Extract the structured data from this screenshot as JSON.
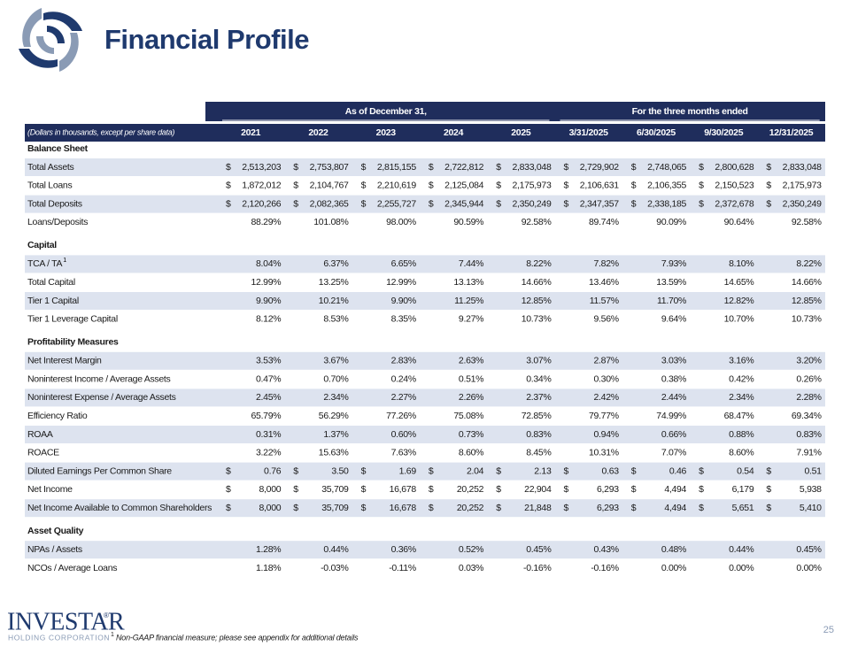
{
  "header": {
    "title": "Financial Profile"
  },
  "logo": {
    "name": "INVESTAR",
    "mark": "®",
    "subtitle": "HOLDING CORPORATION"
  },
  "table": {
    "group_headers": [
      "As of December 31,",
      "For the three months ended"
    ],
    "unit_note": "(Dollars in thousands, except per share data)",
    "columns": [
      "2021",
      "2022",
      "2023",
      "2024",
      "2025",
      "3/31/2025",
      "6/30/2025",
      "9/30/2025",
      "12/31/2025"
    ],
    "sections": [
      {
        "title": "Balance Sheet",
        "rows": [
          {
            "label": "Total Assets",
            "currency": "$",
            "cells": [
              "2,513,203",
              "2,753,807",
              "2,815,155",
              "2,722,812",
              "2,833,048",
              "2,729,902",
              "2,748,065",
              "2,800,628",
              "2,833,048"
            ]
          },
          {
            "label": "Total Loans",
            "currency": "$",
            "cells": [
              "1,872,012",
              "2,104,767",
              "2,210,619",
              "2,125,084",
              "2,175,973",
              "2,106,631",
              "2,106,355",
              "2,150,523",
              "2,175,973"
            ]
          },
          {
            "label": "Total Deposits",
            "currency": "$",
            "cells": [
              "2,120,266",
              "2,082,365",
              "2,255,727",
              "2,345,944",
              "2,350,249",
              "2,347,357",
              "2,338,185",
              "2,372,678",
              "2,350,249"
            ]
          },
          {
            "label": "Loans/Deposits",
            "cells": [
              "88.29%",
              "101.08%",
              "98.00%",
              "90.59%",
              "92.58%",
              "89.74%",
              "90.09%",
              "90.64%",
              "92.58%"
            ]
          }
        ]
      },
      {
        "title": "Capital",
        "rows": [
          {
            "label": "TCA / TA",
            "note": "1",
            "cells": [
              "8.04%",
              "6.37%",
              "6.65%",
              "7.44%",
              "8.22%",
              "7.82%",
              "7.93%",
              "8.10%",
              "8.22%"
            ]
          },
          {
            "label": "Total Capital",
            "cells": [
              "12.99%",
              "13.25%",
              "12.99%",
              "13.13%",
              "14.66%",
              "13.46%",
              "13.59%",
              "14.65%",
              "14.66%"
            ]
          },
          {
            "label": "Tier 1 Capital",
            "cells": [
              "9.90%",
              "10.21%",
              "9.90%",
              "11.25%",
              "12.85%",
              "11.57%",
              "11.70%",
              "12.82%",
              "12.85%"
            ]
          },
          {
            "label": "Tier 1 Leverage Capital",
            "cells": [
              "8.12%",
              "8.53%",
              "8.35%",
              "9.27%",
              "10.73%",
              "9.56%",
              "9.64%",
              "10.70%",
              "10.73%"
            ]
          }
        ]
      },
      {
        "title": "Profitability Measures",
        "rows": [
          {
            "label": "Net Interest Margin",
            "cells": [
              "3.53%",
              "3.67%",
              "2.83%",
              "2.63%",
              "3.07%",
              "2.87%",
              "3.03%",
              "3.16%",
              "3.20%"
            ]
          },
          {
            "label": "Noninterest Income / Average Assets",
            "cells": [
              "0.47%",
              "0.70%",
              "0.24%",
              "0.51%",
              "0.34%",
              "0.30%",
              "0.38%",
              "0.42%",
              "0.26%"
            ]
          },
          {
            "label": "Noninterest Expense / Average Assets",
            "cells": [
              "2.45%",
              "2.34%",
              "2.27%",
              "2.26%",
              "2.37%",
              "2.42%",
              "2.44%",
              "2.34%",
              "2.28%"
            ]
          },
          {
            "label": "Efficiency Ratio",
            "cells": [
              "65.79%",
              "56.29%",
              "77.26%",
              "75.08%",
              "72.85%",
              "79.77%",
              "74.99%",
              "68.47%",
              "69.34%"
            ]
          },
          {
            "label": "ROAA",
            "cells": [
              "0.31%",
              "1.37%",
              "0.60%",
              "0.73%",
              "0.83%",
              "0.94%",
              "0.66%",
              "0.88%",
              "0.83%"
            ]
          },
          {
            "label": "ROACE",
            "cells": [
              "3.22%",
              "15.63%",
              "7.63%",
              "8.60%",
              "8.45%",
              "10.31%",
              "7.07%",
              "8.60%",
              "7.91%"
            ]
          },
          {
            "label": "Diluted Earnings Per Common Share",
            "currency": "$",
            "cells": [
              "0.76",
              "3.50",
              "1.69",
              "2.04",
              "2.13",
              "0.63",
              "0.46",
              "0.54",
              "0.51"
            ]
          },
          {
            "label": "Net Income",
            "currency": "$",
            "cells": [
              "8,000",
              "35,709",
              "16,678",
              "20,252",
              "22,904",
              "6,293",
              "4,494",
              "6,179",
              "5,938"
            ]
          },
          {
            "label": "Net Income Available to Common Shareholders",
            "currency": "$",
            "cells": [
              "8,000",
              "35,709",
              "16,678",
              "20,252",
              "21,848",
              "6,293",
              "4,494",
              "5,651",
              "5,410"
            ]
          }
        ]
      },
      {
        "title": "Asset Quality",
        "rows": [
          {
            "label": "NPAs / Assets",
            "cells": [
              "1.28%",
              "0.44%",
              "0.36%",
              "0.52%",
              "0.45%",
              "0.43%",
              "0.48%",
              "0.44%",
              "0.45%"
            ]
          },
          {
            "label": "NCOs / Average Loans",
            "cells": [
              "1.18%",
              "-0.03%",
              "-0.11%",
              "0.03%",
              "-0.16%",
              "-0.16%",
              "0.00%",
              "0.00%",
              "0.00%"
            ]
          }
        ]
      }
    ]
  },
  "footnote": {
    "marker": "1",
    "text": "Non-GAAP financial measure; please see appendix for additional details"
  },
  "page_number": "25"
}
